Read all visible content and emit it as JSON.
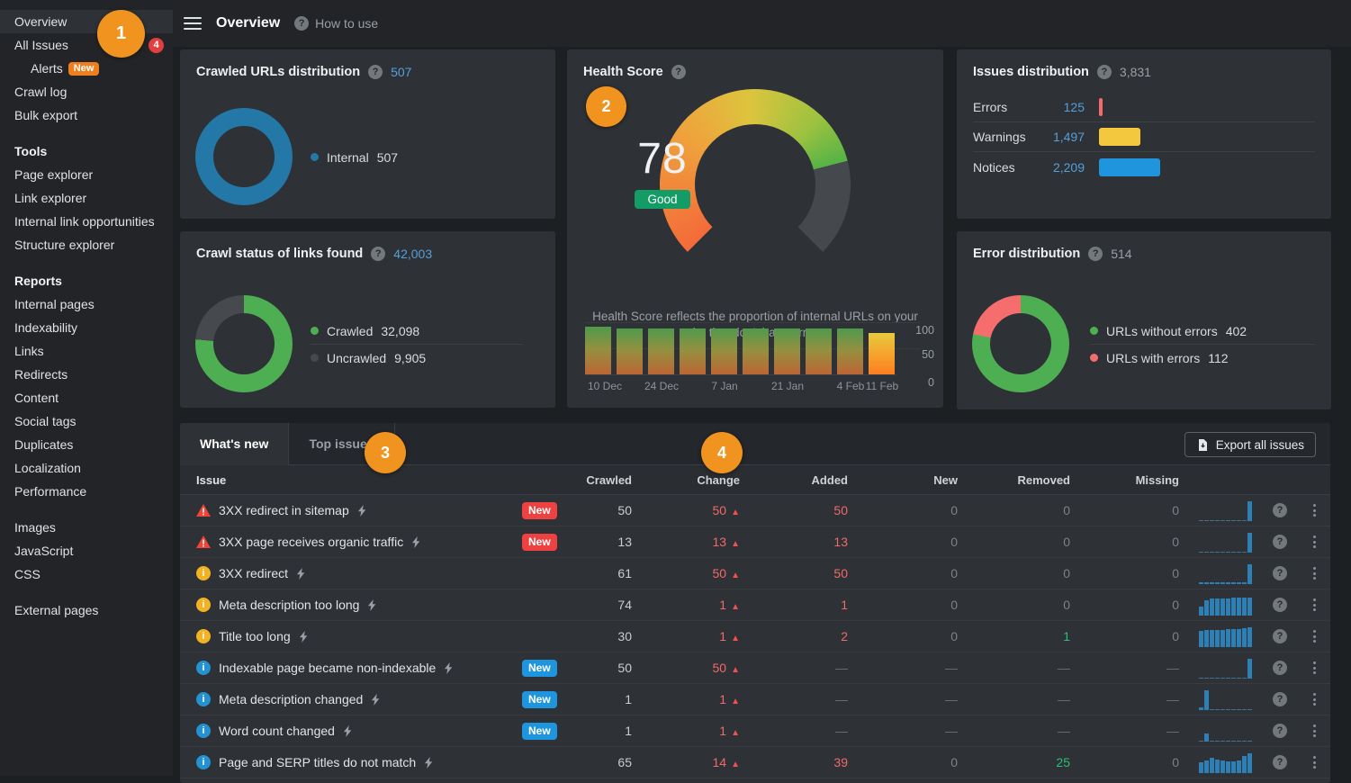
{
  "topbar": {
    "title": "Overview",
    "help_label": "How to use"
  },
  "sidebar": {
    "sections": [
      {
        "items": [
          {
            "label": "Overview",
            "active": true
          },
          {
            "label": "All Issues",
            "count": "4"
          },
          {
            "label": "Alerts",
            "tag": "New",
            "indent": true
          },
          {
            "label": "Crawl log"
          },
          {
            "label": "Bulk export"
          }
        ]
      },
      {
        "header": "Tools",
        "items": [
          {
            "label": "Page explorer"
          },
          {
            "label": "Link explorer"
          },
          {
            "label": "Internal link opportunities"
          },
          {
            "label": "Structure explorer"
          }
        ]
      },
      {
        "header": "Reports",
        "items": [
          {
            "label": "Internal pages"
          },
          {
            "label": "Indexability"
          },
          {
            "label": "Links"
          },
          {
            "label": "Redirects"
          },
          {
            "label": "Content"
          },
          {
            "label": "Social tags"
          },
          {
            "label": "Duplicates"
          },
          {
            "label": "Localization"
          },
          {
            "label": "Performance"
          }
        ]
      },
      {
        "items": [
          {
            "label": "Images"
          },
          {
            "label": "JavaScript"
          },
          {
            "label": "CSS"
          }
        ]
      },
      {
        "items": [
          {
            "label": "External pages"
          }
        ]
      }
    ]
  },
  "annotations": {
    "steps": [
      "1",
      "2",
      "3",
      "4"
    ]
  },
  "cards": {
    "crawled_urls": {
      "title": "Crawled URLs distribution",
      "total": "507",
      "legend": [
        {
          "label": "Internal",
          "value": "507",
          "color": "#2478a8"
        }
      ]
    },
    "health_score": {
      "title": "Health Score",
      "score": "78",
      "score_value": 78,
      "rating": "Good",
      "description": "Health Score reflects the proportion of internal URLs on your site that don't have errors",
      "axis_labels": [
        "100",
        "50",
        "0"
      ],
      "trend": {
        "values": [
          90,
          86,
          86,
          86,
          86,
          86,
          86,
          86,
          86,
          78
        ],
        "warm_last": true,
        "x_labels": [
          "10 Dec",
          "24 Dec",
          "7 Jan",
          "21 Jan",
          "4 Feb",
          "11 Feb"
        ]
      }
    },
    "issues_distribution": {
      "title": "Issues distribution",
      "total": "3,831",
      "rows": [
        {
          "label": "Errors",
          "value": "125",
          "count": 125,
          "color": "#f56a6a"
        },
        {
          "label": "Warnings",
          "value": "1,497",
          "count": 1497,
          "color": "#f3c73e"
        },
        {
          "label": "Notices",
          "value": "2,209",
          "count": 2209,
          "color": "#1e95dc"
        }
      ]
    },
    "crawl_status": {
      "title": "Crawl status of links found",
      "total": "42,003",
      "segments": [
        {
          "label": "Crawled",
          "value": "32,098",
          "count": 32098,
          "color": "#4daf52"
        },
        {
          "label": "Uncrawled",
          "value": "9,905",
          "count": 9905,
          "color": "#46494e"
        }
      ]
    },
    "error_distribution": {
      "title": "Error distribution",
      "total": "514",
      "segments": [
        {
          "label": "URLs without errors",
          "value": "402",
          "count": 402,
          "color": "#4daf52"
        },
        {
          "label": "URLs with errors",
          "value": "112",
          "count": 112,
          "color": "#f56d6d"
        }
      ]
    }
  },
  "table": {
    "tabs": [
      {
        "label": "What's new",
        "active": true
      },
      {
        "label": "Top issues"
      }
    ],
    "export_label": "Export all issues",
    "columns": [
      "Issue",
      "Crawled",
      "Change",
      "Added",
      "New",
      "Removed",
      "Missing"
    ],
    "badge_label": "New",
    "rows": [
      {
        "severity": "error",
        "name": "3XX redirect in sitemap",
        "badge": "red",
        "crawled": "50",
        "change": "50",
        "added": "50",
        "new": "0",
        "removed": "0",
        "missing": "0",
        "spark": [
          0,
          0,
          0,
          0,
          0,
          0,
          0,
          0,
          0,
          100
        ]
      },
      {
        "severity": "error",
        "name": "3XX page receives organic traffic",
        "badge": "red",
        "crawled": "13",
        "change": "13",
        "added": "13",
        "new": "0",
        "removed": "0",
        "missing": "0",
        "spark": [
          0,
          0,
          0,
          0,
          0,
          0,
          0,
          0,
          0,
          100
        ]
      },
      {
        "severity": "warning",
        "name": "3XX redirect",
        "badge": "",
        "crawled": "61",
        "change": "50",
        "added": "50",
        "new": "0",
        "removed": "0",
        "missing": "0",
        "spark": [
          8,
          8,
          8,
          8,
          8,
          8,
          8,
          8,
          8,
          100
        ]
      },
      {
        "severity": "warning",
        "name": "Meta description too long",
        "badge": "",
        "crawled": "74",
        "change": "1",
        "added": "1",
        "new": "0",
        "removed": "0",
        "missing": "0",
        "spark": [
          45,
          75,
          85,
          85,
          88,
          88,
          90,
          90,
          92,
          92
        ]
      },
      {
        "severity": "warning",
        "name": "Title too long",
        "badge": "",
        "crawled": "30",
        "change": "1",
        "added": "2",
        "new": "0",
        "removed": "1",
        "removed_green": true,
        "missing": "0",
        "spark": [
          80,
          88,
          88,
          85,
          88,
          90,
          90,
          92,
          95,
          100
        ]
      },
      {
        "severity": "notice",
        "name": "Indexable page became non-indexable",
        "badge": "blue",
        "crawled": "50",
        "change": "50",
        "added": "—",
        "new": "—",
        "removed": "—",
        "missing": "—",
        "spark": [
          0,
          0,
          0,
          0,
          0,
          0,
          0,
          0,
          0,
          100
        ]
      },
      {
        "severity": "notice",
        "name": "Meta description changed",
        "badge": "blue",
        "crawled": "1",
        "change": "1",
        "added": "—",
        "new": "—",
        "removed": "—",
        "missing": "—",
        "spark": [
          15,
          100,
          0,
          0,
          0,
          0,
          0,
          0,
          0,
          0
        ]
      },
      {
        "severity": "notice",
        "name": "Word count changed",
        "badge": "blue",
        "crawled": "1",
        "change": "1",
        "added": "—",
        "new": "—",
        "removed": "—",
        "missing": "—",
        "spark": [
          0,
          40,
          0,
          0,
          0,
          0,
          0,
          0,
          0,
          0
        ]
      },
      {
        "severity": "notice",
        "name": "Page and SERP titles do not match",
        "badge": "",
        "crawled": "65",
        "change": "14",
        "added": "39",
        "new": "0",
        "removed": "25",
        "removed_green": true,
        "missing": "0",
        "spark": [
          55,
          65,
          75,
          70,
          65,
          60,
          60,
          65,
          85,
          100
        ]
      }
    ]
  }
}
